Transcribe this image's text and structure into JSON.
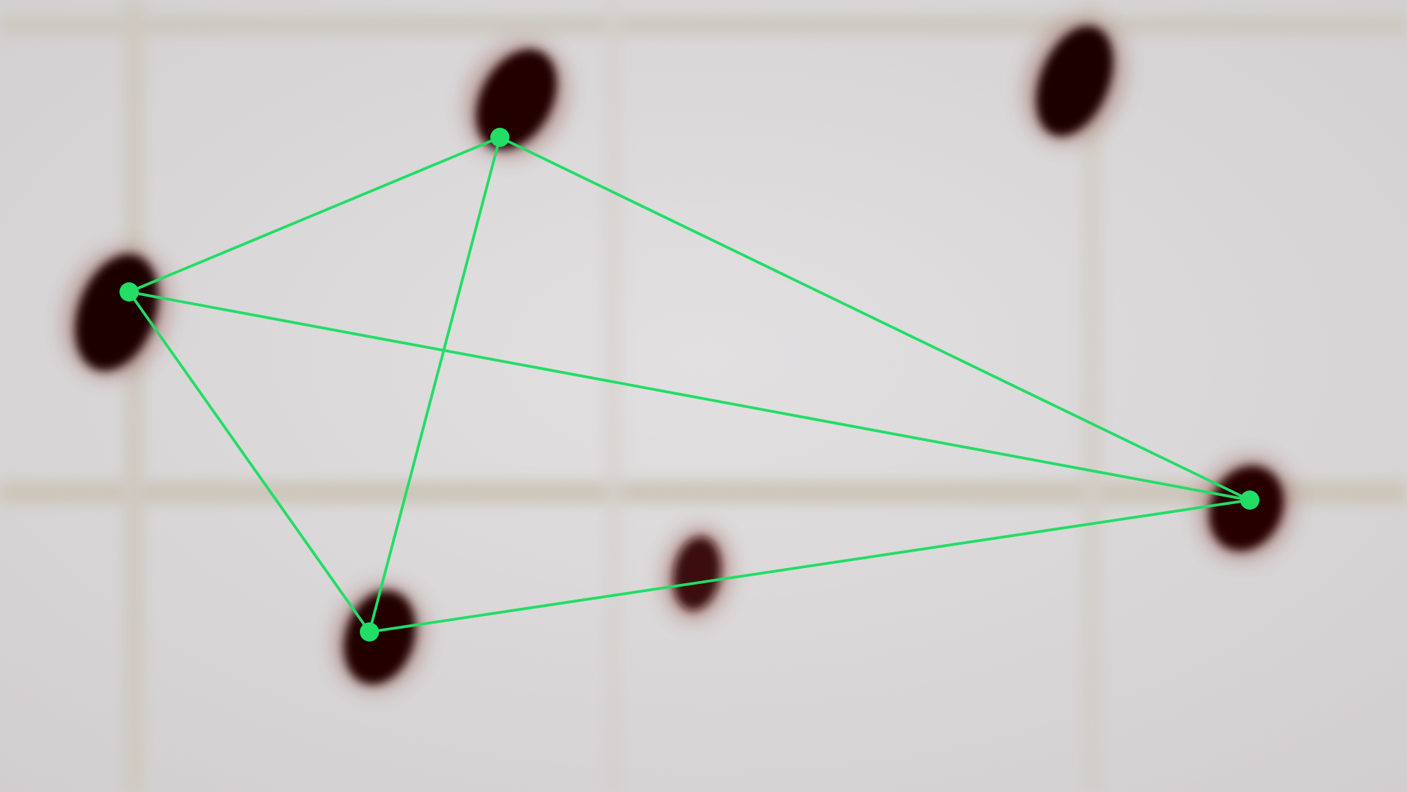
{
  "colors": {
    "background": "#dcd9da",
    "grid_line": "#cfc9be",
    "spot": "#2a0404",
    "spot_edge": "#7a1a14",
    "overlay_line": "#22dd66",
    "overlay_point": "#22dd66"
  },
  "overlay": {
    "shape": "complete-graph-on-4-points",
    "vertex_count": 4,
    "edge_count": 6
  },
  "spots": {
    "total_count": 6,
    "connected_count": 4,
    "unconnected_count": 2
  }
}
